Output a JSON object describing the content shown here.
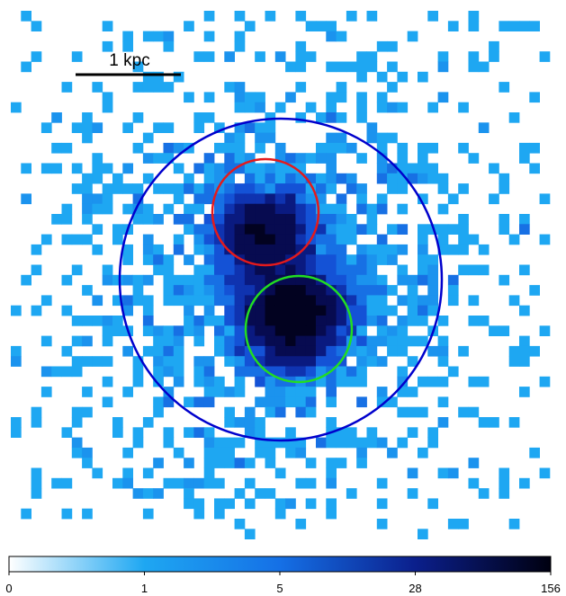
{
  "scale_bar": {
    "label": "1 kpc"
  },
  "colorbar": {
    "ticks": [
      {
        "label": "0",
        "value": 0
      },
      {
        "label": "1",
        "value": 1
      },
      {
        "label": "5",
        "value": 5
      },
      {
        "label": "28",
        "value": 28
      },
      {
        "label": "156",
        "value": 156
      }
    ],
    "gradient_stops": [
      "#ffffff",
      "#1ea7f2",
      "#1570e6",
      "#0b1f8c",
      "#000010"
    ]
  },
  "regions": [
    {
      "name": "outer-region",
      "color": "#0000cc"
    },
    {
      "name": "north-source-region",
      "color": "#e31a1c"
    },
    {
      "name": "south-source-region",
      "color": "#22dd22"
    }
  ],
  "map_palette": {
    "count_1": "#1ea7f2",
    "count_2": "#1b93ee",
    "count_3": "#1770e4",
    "count_5": "#1452d6",
    "count_8": "#0f33b0",
    "count_15": "#0a1a80",
    "count_28": "#070b50",
    "count_60": "#020220"
  }
}
